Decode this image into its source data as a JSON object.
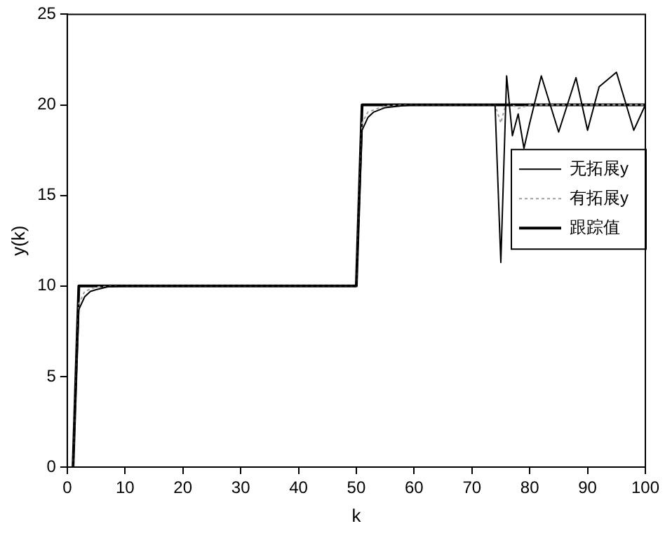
{
  "chart_data": {
    "type": "line",
    "xlabel": "k",
    "ylabel": "y(k)",
    "xlim": [
      0,
      100
    ],
    "ylim": [
      0,
      25
    ],
    "xticks": [
      0,
      10,
      20,
      30,
      40,
      50,
      60,
      70,
      80,
      90,
      100
    ],
    "yticks": [
      0,
      5,
      10,
      15,
      20,
      25
    ],
    "grid": false,
    "legend": "right",
    "marker": "none",
    "series": [
      {
        "name": "无拓展y",
        "color": "#000000",
        "line_style": "solid",
        "x": [
          1,
          2,
          3,
          4,
          5,
          7,
          10,
          50,
          51,
          52,
          53,
          55,
          58,
          60,
          74,
          75,
          76,
          77,
          78,
          79,
          80,
          82,
          85,
          88,
          90,
          92,
          95,
          98,
          100
        ],
        "values": [
          0,
          8.7,
          9.4,
          9.7,
          9.8,
          9.95,
          10,
          10,
          18.6,
          19.3,
          19.6,
          19.85,
          19.95,
          20,
          20,
          11.3,
          21.6,
          18.3,
          19.5,
          17.6,
          19,
          21.6,
          18.5,
          21.5,
          18.6,
          21,
          21.8,
          18.6,
          20
        ]
      },
      {
        "name": "有拓展y",
        "color": "#a0a0a0",
        "line_style": "dotted",
        "x": [
          1,
          2,
          3,
          5,
          10,
          50,
          51,
          52,
          55,
          60,
          74,
          75,
          76,
          78,
          80,
          100
        ],
        "values": [
          0,
          9,
          9.7,
          9.95,
          10,
          10,
          19,
          19.6,
          19.95,
          20,
          20,
          19,
          20.2,
          19.8,
          20,
          20
        ]
      },
      {
        "name": "跟踪值",
        "color": "#000000",
        "line_style": "solid",
        "x": [
          1,
          2,
          50,
          51,
          100
        ],
        "values": [
          0,
          10,
          10,
          20,
          20
        ]
      }
    ]
  }
}
